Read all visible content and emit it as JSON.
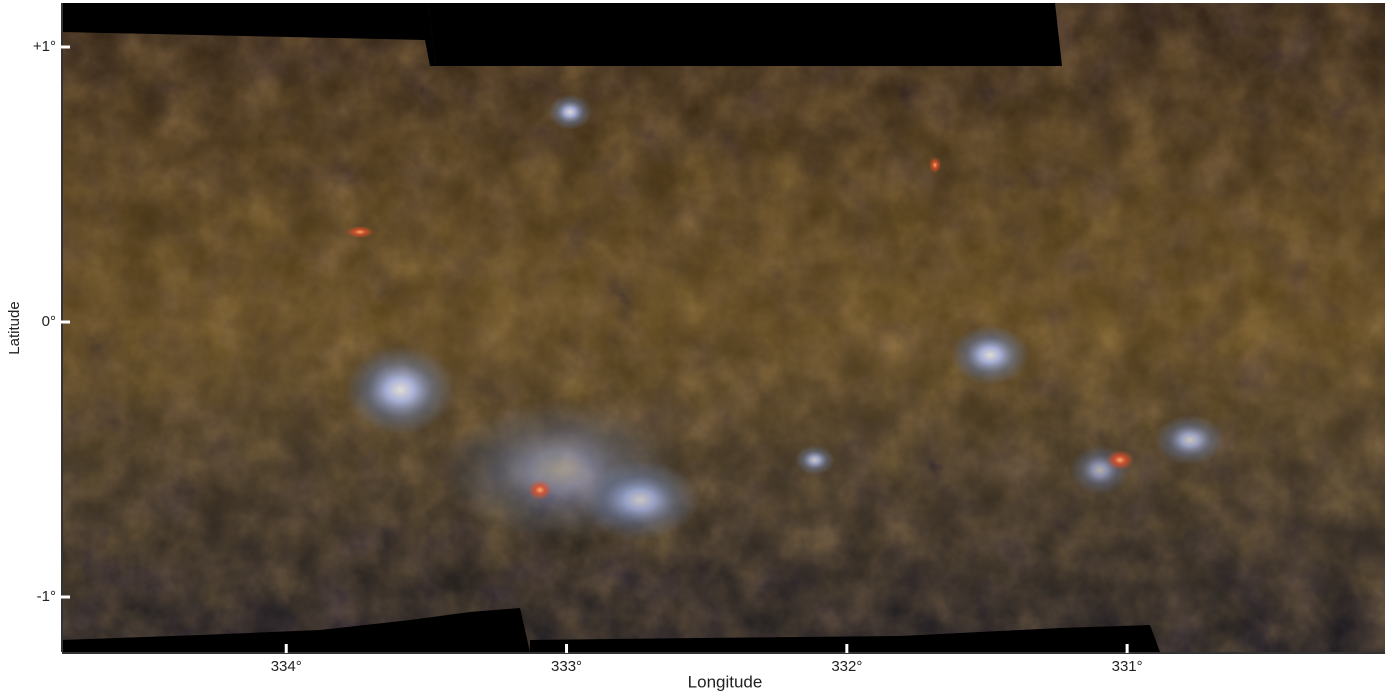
{
  "chart_data": {
    "type": "image",
    "x_label": "Longitude",
    "y_label": "Latitude",
    "xlim": [
      334.8,
      330.08
    ],
    "ylim": [
      -1.2,
      1.16
    ],
    "xticks": [
      {
        "value": 334,
        "label": "334°"
      },
      {
        "value": 333,
        "label": "333°"
      },
      {
        "value": 332,
        "label": "332°"
      },
      {
        "value": 331,
        "label": "331°"
      }
    ],
    "yticks": [
      {
        "value": 1,
        "label": "+1°"
      },
      {
        "value": 0,
        "label": "0°"
      },
      {
        "value": -1,
        "label": "-1°"
      }
    ]
  }
}
